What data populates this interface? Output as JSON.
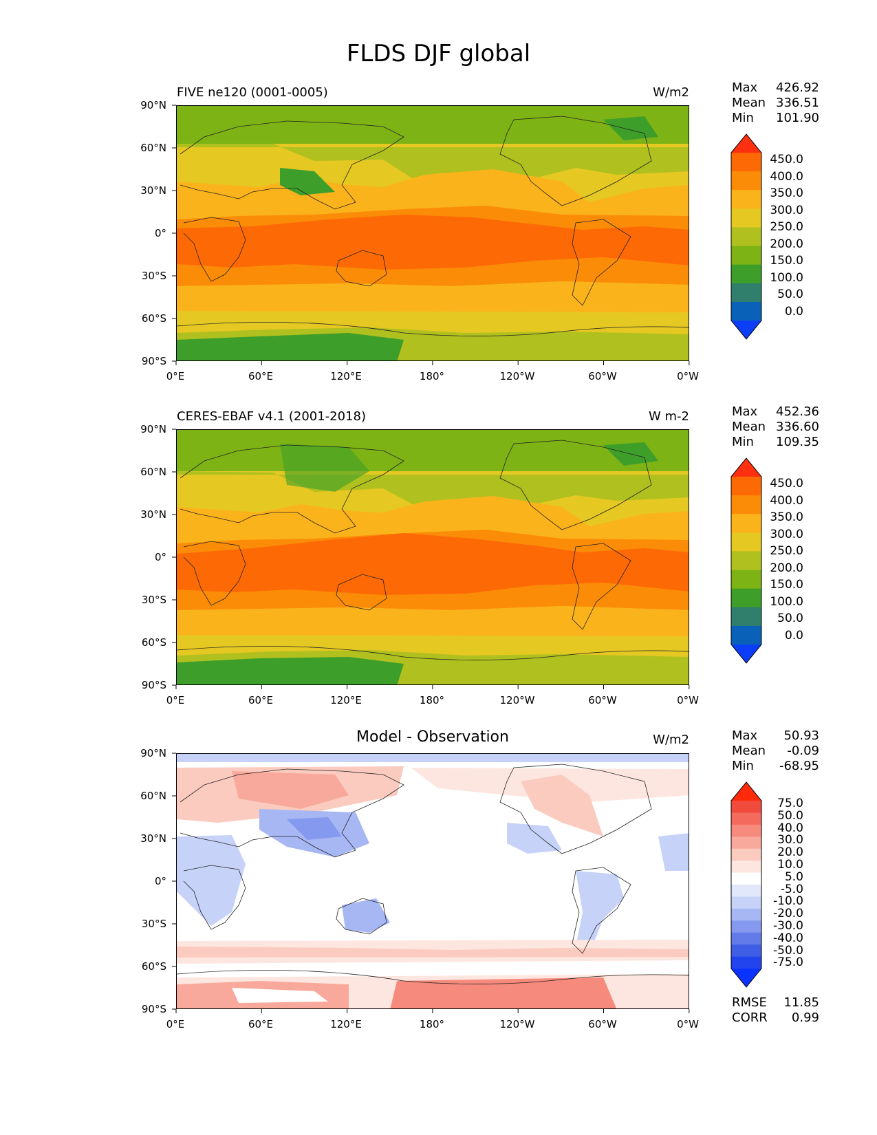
{
  "figure": {
    "title": "FLDS DJF global"
  },
  "axes": {
    "lat_ticks": [
      "90°N",
      "60°N",
      "30°N",
      "0°",
      "30°S",
      "60°S",
      "90°S"
    ],
    "lon_ticks": [
      "0°E",
      "60°E",
      "120°E",
      "180°",
      "120°W",
      "60°W",
      "0°W"
    ]
  },
  "panels": [
    {
      "title": "FIVE ne120 (0001-0005)",
      "units": "W/m2",
      "stats": {
        "max_label": "Max",
        "max": "426.92",
        "mean_label": "Mean",
        "mean": "336.51",
        "min_label": "Min",
        "min": "101.90"
      },
      "colorbar": {
        "labels": [
          "450.0",
          "400.0",
          "350.0",
          "300.0",
          "250.0",
          "200.0",
          "150.0",
          "100.0",
          "50.0",
          "0.0"
        ],
        "colors": [
          "#ff3010",
          "#fd6a05",
          "#fb8c08",
          "#fbb31c",
          "#e5c822",
          "#b0c01e",
          "#7db315",
          "#3e9e2a",
          "#2f7f6c",
          "#0a62b8",
          "#0b3ef6"
        ]
      }
    },
    {
      "title": "CERES-EBAF v4.1 (2001-2018)",
      "units": "W m-2",
      "stats": {
        "max_label": "Max",
        "max": "452.36",
        "mean_label": "Mean",
        "mean": "336.60",
        "min_label": "Min",
        "min": "109.35"
      },
      "colorbar": {
        "labels": [
          "450.0",
          "400.0",
          "350.0",
          "300.0",
          "250.0",
          "200.0",
          "150.0",
          "100.0",
          "50.0",
          "0.0"
        ],
        "colors": [
          "#ff3010",
          "#fd6a05",
          "#fb8c08",
          "#fbb31c",
          "#e5c822",
          "#b0c01e",
          "#7db315",
          "#3e9e2a",
          "#2f7f6c",
          "#0a62b8",
          "#0b3ef6"
        ]
      }
    },
    {
      "title": "Model - Observation",
      "units": "W/m2",
      "stats": {
        "max_label": "Max",
        "max": "50.93",
        "mean_label": "Mean",
        "mean": "-0.09",
        "min_label": "Min",
        "min": "-68.95"
      },
      "colorbar": {
        "labels": [
          "75.0",
          "50.0",
          "40.0",
          "30.0",
          "20.0",
          "10.0",
          "5.0",
          "-5.0",
          "-10.0",
          "-20.0",
          "-30.0",
          "-40.0",
          "-50.0",
          "-75.0"
        ],
        "colors": [
          "#ff2a0a",
          "#f14b3e",
          "#f46a5c",
          "#f68a7c",
          "#f9a99c",
          "#fbcbc0",
          "#fde6e0",
          "#ffffff",
          "#e2e8fb",
          "#c7d2f9",
          "#a7b7f4",
          "#8599ee",
          "#627be9",
          "#3f5ee6",
          "#2244ee",
          "#0a33ff"
        ]
      },
      "summary": {
        "rmse_label": "RMSE",
        "rmse": "11.85",
        "corr_label": "CORR",
        "corr": "0.99"
      }
    }
  ]
}
